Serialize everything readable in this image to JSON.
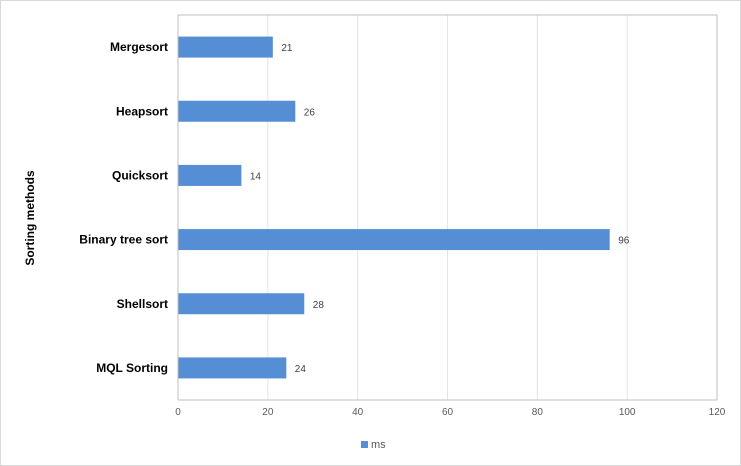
{
  "chart_data": {
    "type": "bar",
    "orientation": "horizontal",
    "categories": [
      "Mergesort",
      "Heapsort",
      "Quicksort",
      "Binary tree sort",
      "Shellsort",
      "MQL Sorting"
    ],
    "series": [
      {
        "name": "ms",
        "values": [
          21,
          26,
          14,
          96,
          28,
          24
        ],
        "color": "#558ed5"
      }
    ],
    "title": "",
    "xlabel": "",
    "ylabel": "Sorting methods",
    "xlim": [
      0,
      120
    ],
    "x_ticks": [
      0,
      20,
      40,
      60,
      80,
      100,
      120
    ],
    "grid": "vertical",
    "legend": "bottom",
    "data_labels": true
  }
}
